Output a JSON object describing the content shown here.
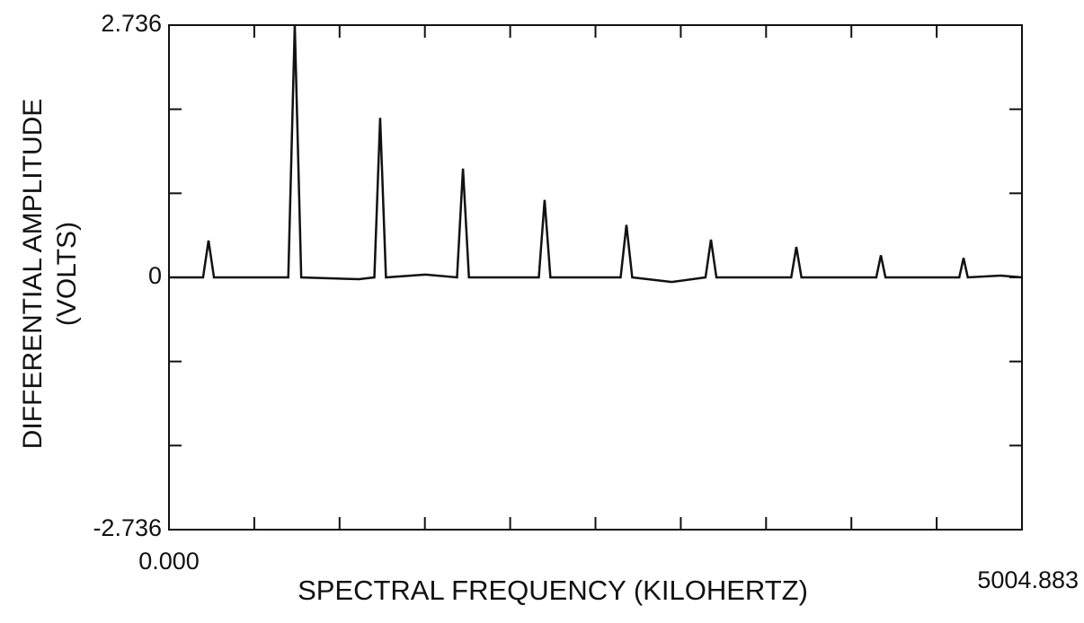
{
  "chart_data": {
    "type": "line",
    "xlabel": "SPECTRAL FREQUENCY (KILOHERTZ)",
    "ylabel": [
      "DIFFERENTIAL AMPLITUDE",
      "(VOLTS)"
    ],
    "xlim": [
      0,
      5004.883
    ],
    "ylim": [
      -2.736,
      2.736
    ],
    "xticks": [
      {
        "value": 0,
        "label": "0.000"
      },
      5004.883
    ],
    "yticks": [
      -2.736,
      0,
      2.736
    ],
    "color": "#111111",
    "x": [
      0,
      200,
      232,
      264,
      700,
      738,
      776,
      1115,
      1205,
      1239,
      1273,
      1505,
      1690,
      1725,
      1760,
      2170,
      2204,
      2238,
      2650,
      2684,
      2718,
      2950,
      3148,
      3180,
      3212,
      3651,
      3681,
      3711,
      4150,
      4177,
      4204,
      4637,
      4662,
      4687,
      4880,
      5004.883
    ],
    "values": [
      0,
      0,
      0.4,
      0,
      0,
      2.736,
      0,
      -0.02,
      0,
      1.73,
      0,
      0.03,
      0,
      1.18,
      0,
      0,
      0.84,
      0,
      0,
      0.57,
      0,
      -0.05,
      0,
      0.41,
      0,
      0,
      0.33,
      0,
      0,
      0.24,
      0,
      0,
      0.21,
      0,
      0.02,
      0
    ]
  }
}
